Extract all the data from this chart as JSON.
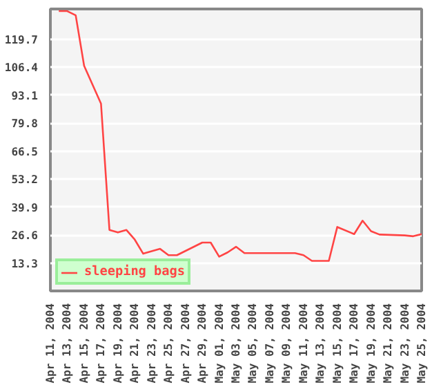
{
  "chart_data": {
    "type": "line",
    "x": [
      "2004-04-12",
      "2004-04-13",
      "2004-04-14",
      "2004-04-15",
      "2004-04-17",
      "2004-04-18",
      "2004-04-19",
      "2004-04-20",
      "2004-04-21",
      "2004-04-22",
      "2004-04-24",
      "2004-04-25",
      "2004-04-26",
      "2004-04-29",
      "2004-04-30",
      "2004-05-01",
      "2004-05-02",
      "2004-05-03",
      "2004-05-04",
      "2004-05-10",
      "2004-05-11",
      "2004-05-12",
      "2004-05-14",
      "2004-05-15",
      "2004-05-17",
      "2004-05-18",
      "2004-05-19",
      "2004-05-20",
      "2004-05-23",
      "2004-05-24",
      "2004-05-25"
    ],
    "series": [
      {
        "name": "sleeping bags",
        "color": "#ff4444",
        "values": [
          133,
          133,
          131,
          107,
          89,
          29,
          27.8,
          29,
          24.4,
          17.7,
          20,
          17,
          17,
          23,
          23,
          16.3,
          18.3,
          21,
          18,
          18,
          17,
          14.3,
          14.3,
          30.4,
          27,
          33.4,
          28.4,
          26.8,
          26.4,
          26,
          27
        ]
      }
    ],
    "xlim": [
      "2004-04-11",
      "2004-05-25"
    ],
    "xticks": [
      {
        "value": "2004-04-11",
        "label": "Apr 11, 2004"
      },
      {
        "value": "2004-04-13",
        "label": "Apr 13, 2004"
      },
      {
        "value": "2004-04-15",
        "label": "Apr 15, 2004"
      },
      {
        "value": "2004-04-17",
        "label": "Apr 17, 2004"
      },
      {
        "value": "2004-04-19",
        "label": "Apr 19, 2004"
      },
      {
        "value": "2004-04-21",
        "label": "Apr 21, 2004"
      },
      {
        "value": "2004-04-23",
        "label": "Apr 23, 2004"
      },
      {
        "value": "2004-04-25",
        "label": "Apr 25, 2004"
      },
      {
        "value": "2004-04-27",
        "label": "Apr 27, 2004"
      },
      {
        "value": "2004-04-29",
        "label": "Apr 29, 2004"
      },
      {
        "value": "2004-05-01",
        "label": "May 01, 2004"
      },
      {
        "value": "2004-05-03",
        "label": "May 03, 2004"
      },
      {
        "value": "2004-05-05",
        "label": "May 05, 2004"
      },
      {
        "value": "2004-05-07",
        "label": "May 07, 2004"
      },
      {
        "value": "2004-05-09",
        "label": "May 09, 2004"
      },
      {
        "value": "2004-05-11",
        "label": "May 11, 2004"
      },
      {
        "value": "2004-05-13",
        "label": "May 13, 2004"
      },
      {
        "value": "2004-05-15",
        "label": "May 15, 2004"
      },
      {
        "value": "2004-05-17",
        "label": "May 17, 2004"
      },
      {
        "value": "2004-05-19",
        "label": "May 19, 2004"
      },
      {
        "value": "2004-05-21",
        "label": "May 21, 2004"
      },
      {
        "value": "2004-05-23",
        "label": "May 23, 2004"
      },
      {
        "value": "2004-05-25",
        "label": "May 25, 2004"
      }
    ],
    "ylim": [
      0,
      134
    ],
    "yticks": [
      13.3,
      26.6,
      39.9,
      53.2,
      66.5,
      79.8,
      93.1,
      106.4,
      119.7
    ],
    "grid": "y",
    "legend": "bottom"
  }
}
